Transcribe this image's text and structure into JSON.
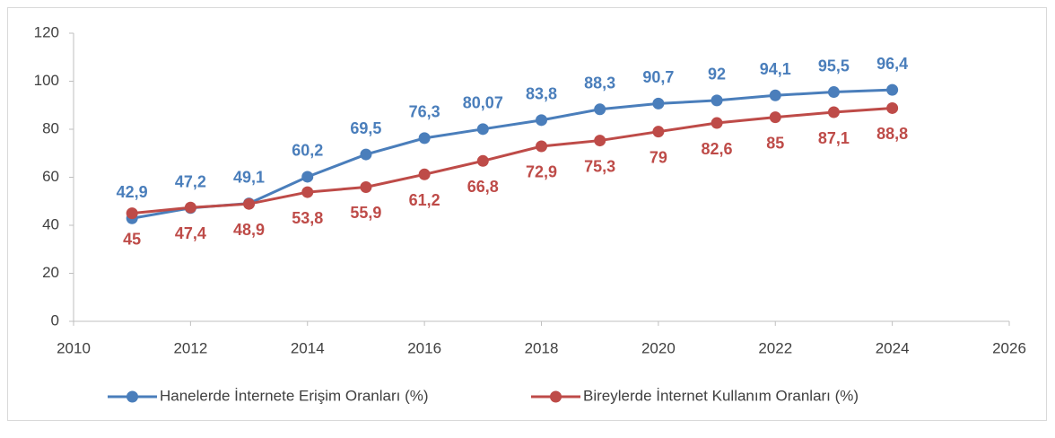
{
  "chart_data": {
    "type": "line",
    "x": [
      2011,
      2012,
      2013,
      2014,
      2015,
      2016,
      2017,
      2018,
      2019,
      2020,
      2021,
      2022,
      2023,
      2024
    ],
    "series": [
      {
        "name": "Hanelerde İnternete Erişim Oranları (%)",
        "color": "#4a7ebb",
        "values": [
          42.9,
          47.2,
          49.1,
          60.2,
          69.5,
          76.3,
          80.07,
          83.8,
          88.3,
          90.7,
          92,
          94.1,
          95.5,
          96.4
        ],
        "value_labels": [
          "42,9",
          "47,2",
          "49,1",
          "60,2",
          "69,5",
          "76,3",
          "80,07",
          "83,8",
          "88,3",
          "90,7",
          "92",
          "94,1",
          "95,5",
          "96,4"
        ]
      },
      {
        "name": "Bireylerde İnternet Kullanım Oranları (%)",
        "color": "#be4b48",
        "values": [
          45,
          47.4,
          48.9,
          53.8,
          55.9,
          61.2,
          66.8,
          72.9,
          75.3,
          79,
          82.6,
          85,
          87.1,
          88.8
        ],
        "value_labels": [
          "45",
          "47,4",
          "48,9",
          "53,8",
          "55,9",
          "61,2",
          "66,8",
          "72,9",
          "75,3",
          "79",
          "82,6",
          "85",
          "87,1",
          "88,8"
        ]
      }
    ],
    "xlim": [
      2010,
      2026
    ],
    "xticks": [
      2010,
      2012,
      2014,
      2016,
      2018,
      2020,
      2022,
      2024,
      2026
    ],
    "ylim": [
      0,
      120
    ],
    "yticks": [
      0,
      20,
      40,
      60,
      80,
      100,
      120
    ],
    "grid": false,
    "legend": "bottom"
  }
}
